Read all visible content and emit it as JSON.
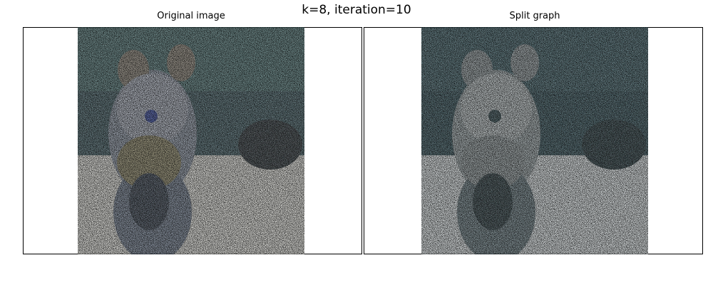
{
  "figure": {
    "suptitle": "k=8, iteration=10"
  },
  "panels": [
    {
      "title": "Original image"
    },
    {
      "title": "Split graph"
    }
  ]
}
